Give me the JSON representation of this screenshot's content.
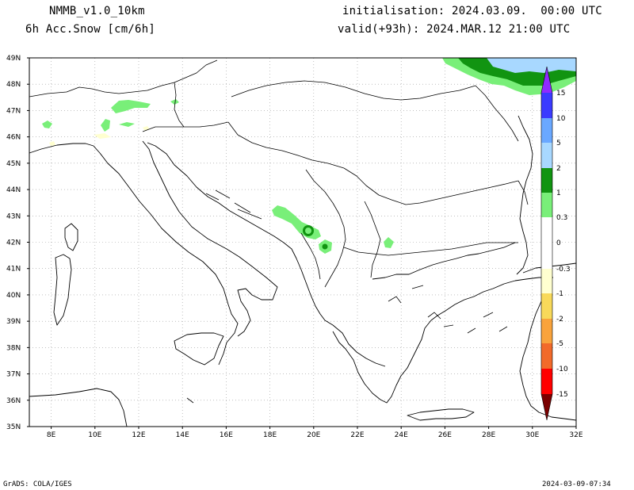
{
  "header": {
    "model": "NMMB_v1.0_10km",
    "field": "6h Acc.Snow [cm/6h]",
    "init": "initialisation: 2024.03.09.  00:00 UTC",
    "valid": "valid(+93h): 2024.MAR.12 21:00 UTC"
  },
  "axes": {
    "lat_labels": [
      "49N",
      "48N",
      "47N",
      "46N",
      "45N",
      "44N",
      "43N",
      "42N",
      "41N",
      "40N",
      "39N",
      "38N",
      "37N",
      "36N",
      "35N"
    ],
    "lon_labels": [
      "8E",
      "10E",
      "12E",
      "14E",
      "16E",
      "18E",
      "20E",
      "22E",
      "24E",
      "26E",
      "28E",
      "30E",
      "32E"
    ],
    "lat_values": [
      49,
      48,
      47,
      46,
      45,
      44,
      43,
      42,
      41,
      40,
      39,
      38,
      37,
      36,
      35
    ],
    "lon_values": [
      8,
      10,
      12,
      14,
      16,
      18,
      20,
      22,
      24,
      26,
      28,
      30,
      32
    ]
  },
  "colorbar": {
    "labels": [
      "15",
      "10",
      "5",
      "2",
      "1",
      "0.3",
      "0",
      "-0.3",
      "-1",
      "-2",
      "-5",
      "-10",
      "-15"
    ],
    "colors": {
      "c15": "#8f2bff",
      "c10": "#3b3bff",
      "c5": "#6aa8ff",
      "c2": "#a8d8ff",
      "c1": "#119411",
      "c03": "#79ef79",
      "cn03": "#ffffd0",
      "cn1": "#f8d95a",
      "cn2": "#f9a33c",
      "cn5": "#f26a2a",
      "cn10": "#ff0000",
      "cn15": "#c00000",
      "cn20": "#7a0000"
    }
  },
  "footer": {
    "left": "GrADS: COLA/IGES",
    "right": "2024-03-09-07:34"
  }
}
